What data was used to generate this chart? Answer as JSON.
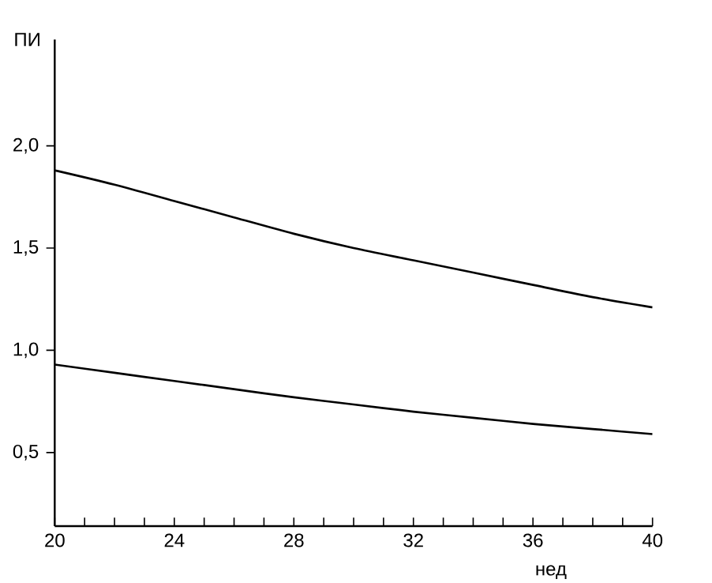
{
  "chart_data": {
    "type": "line",
    "xlabel": "нед",
    "ylabel": "ПИ",
    "x": [
      20,
      22,
      24,
      26,
      28,
      30,
      32,
      34,
      36,
      38,
      40
    ],
    "series": [
      {
        "color": "#000000",
        "values": [
          1.88,
          1.81,
          1.73,
          1.65,
          1.57,
          1.5,
          1.44,
          1.38,
          1.32,
          1.26,
          1.21
        ]
      },
      {
        "color": "#000000",
        "values": [
          0.93,
          0.89,
          0.85,
          0.81,
          0.77,
          0.735,
          0.7,
          0.67,
          0.64,
          0.615,
          0.59
        ]
      }
    ],
    "xlim": [
      20,
      40
    ],
    "ylim": [
      0.14,
      2.52
    ],
    "xticks": [
      20,
      {
        "value": 21,
        "label": null
      },
      {
        "value": 22,
        "label": null
      },
      {
        "value": 23,
        "label": null
      },
      24,
      {
        "value": 25,
        "label": null
      },
      {
        "value": 26,
        "label": null
      },
      {
        "value": 27,
        "label": null
      },
      28,
      {
        "value": 29,
        "label": null
      },
      {
        "value": 30,
        "label": null
      },
      {
        "value": 31,
        "label": null
      },
      32,
      {
        "value": 33,
        "label": null
      },
      {
        "value": 34,
        "label": null
      },
      {
        "value": 35,
        "label": null
      },
      36,
      {
        "value": 37,
        "label": null
      },
      {
        "value": 38,
        "label": null
      },
      {
        "value": 39,
        "label": null
      },
      40
    ],
    "yticks": [
      {
        "value": 0.5,
        "label": "0,5"
      },
      {
        "value": 1.0,
        "label": "1,0"
      },
      {
        "value": 1.5,
        "label": "1,5"
      },
      {
        "value": 2.0,
        "label": "2,0"
      }
    ],
    "grid": false,
    "marker": "none",
    "line_style": "solid"
  }
}
